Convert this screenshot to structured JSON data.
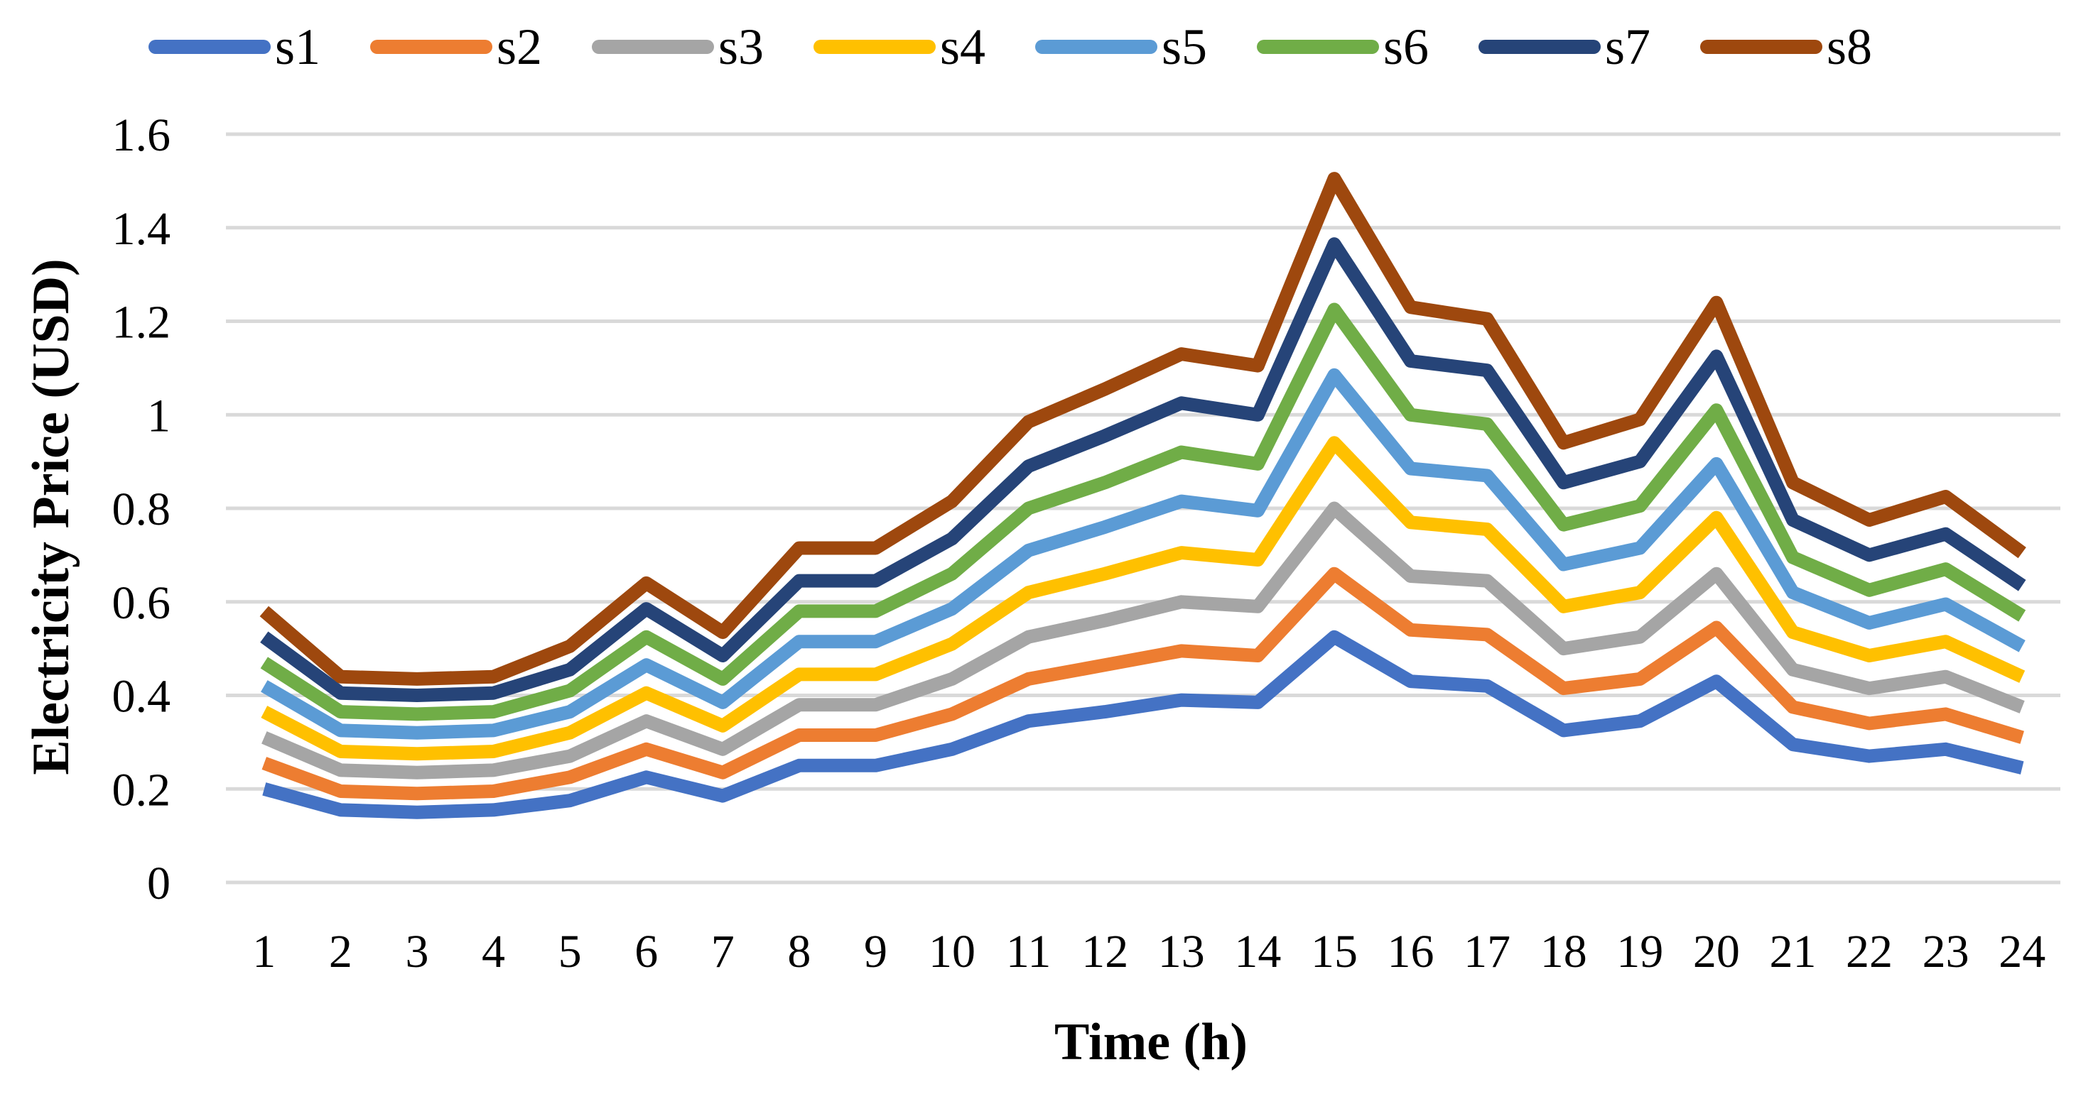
{
  "chart_data": {
    "type": "line",
    "title": "",
    "xlabel": "Time (h)",
    "ylabel": "Electricity Price (USD)",
    "ylim": [
      0,
      1.6
    ],
    "yticks": [
      "0",
      "0.2",
      "0.4",
      "0.6",
      "0.8",
      "1",
      "1.2",
      "1.4",
      "1.6"
    ],
    "x": [
      "1",
      "2",
      "3",
      "4",
      "5",
      "6",
      "7",
      "8",
      "9",
      "10",
      "11",
      "12",
      "13",
      "14",
      "15",
      "16",
      "17",
      "18",
      "19",
      "20",
      "21",
      "22",
      "23",
      "24"
    ],
    "grid": true,
    "legend": "top",
    "series": [
      {
        "name": "s1",
        "color": "#4472c4",
        "values": [
          0.2,
          0.155,
          0.15,
          0.155,
          0.175,
          0.225,
          0.185,
          0.25,
          0.25,
          0.285,
          0.345,
          0.365,
          0.39,
          0.385,
          0.525,
          0.43,
          0.42,
          0.325,
          0.345,
          0.43,
          0.295,
          0.27,
          0.285,
          0.245
        ]
      },
      {
        "name": "s2",
        "color": "#ed7d31",
        "values": [
          0.255,
          0.195,
          0.19,
          0.195,
          0.225,
          0.285,
          0.235,
          0.315,
          0.315,
          0.36,
          0.435,
          0.465,
          0.495,
          0.485,
          0.66,
          0.54,
          0.53,
          0.415,
          0.435,
          0.545,
          0.375,
          0.34,
          0.36,
          0.31
        ]
      },
      {
        "name": "s3",
        "color": "#a5a5a5",
        "values": [
          0.31,
          0.24,
          0.235,
          0.24,
          0.27,
          0.345,
          0.285,
          0.38,
          0.38,
          0.435,
          0.525,
          0.56,
          0.6,
          0.59,
          0.8,
          0.655,
          0.645,
          0.5,
          0.525,
          0.66,
          0.455,
          0.415,
          0.44,
          0.375
        ]
      },
      {
        "name": "s4",
        "color": "#ffc000",
        "values": [
          0.365,
          0.28,
          0.275,
          0.28,
          0.32,
          0.405,
          0.335,
          0.445,
          0.445,
          0.51,
          0.62,
          0.66,
          0.705,
          0.69,
          0.94,
          0.77,
          0.755,
          0.59,
          0.62,
          0.78,
          0.535,
          0.485,
          0.515,
          0.44
        ]
      },
      {
        "name": "s5",
        "color": "#5b9bd5",
        "values": [
          0.42,
          0.325,
          0.32,
          0.325,
          0.365,
          0.465,
          0.385,
          0.515,
          0.515,
          0.585,
          0.71,
          0.76,
          0.815,
          0.795,
          1.085,
          0.885,
          0.87,
          0.68,
          0.715,
          0.895,
          0.62,
          0.555,
          0.595,
          0.505
        ]
      },
      {
        "name": "s6",
        "color": "#70ad47",
        "values": [
          0.47,
          0.365,
          0.36,
          0.365,
          0.41,
          0.525,
          0.435,
          0.58,
          0.58,
          0.66,
          0.8,
          0.855,
          0.92,
          0.895,
          1.225,
          1.0,
          0.98,
          0.765,
          0.805,
          1.01,
          0.695,
          0.625,
          0.67,
          0.57
        ]
      },
      {
        "name": "s7",
        "color": "#264478",
        "values": [
          0.525,
          0.405,
          0.4,
          0.405,
          0.455,
          0.585,
          0.485,
          0.645,
          0.645,
          0.735,
          0.89,
          0.955,
          1.025,
          1.0,
          1.365,
          1.115,
          1.095,
          0.855,
          0.9,
          1.125,
          0.775,
          0.7,
          0.745,
          0.635
        ]
      },
      {
        "name": "s8",
        "color": "#9e480e",
        "values": [
          0.58,
          0.44,
          0.435,
          0.44,
          0.505,
          0.64,
          0.535,
          0.715,
          0.715,
          0.815,
          0.985,
          1.055,
          1.13,
          1.105,
          1.505,
          1.23,
          1.205,
          0.94,
          0.99,
          1.24,
          0.855,
          0.775,
          0.825,
          0.705
        ]
      }
    ]
  }
}
